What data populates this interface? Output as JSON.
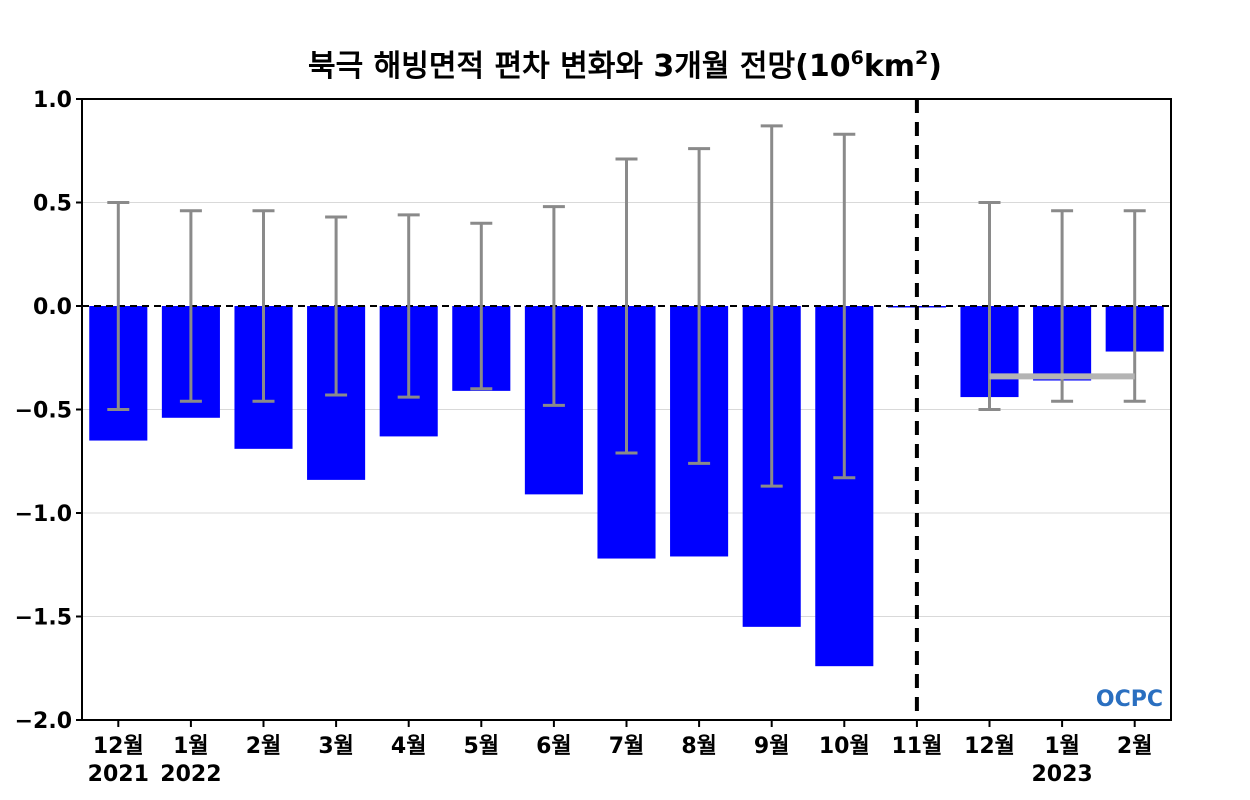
{
  "chart_data": {
    "type": "bar",
    "title": "북극 해빙면적 편차 변화와 3개월 전망(10",
    "title_exp1": "6",
    "title_mid": "km",
    "title_exp2": "2",
    "title_end": ")",
    "categories": [
      "12월",
      "1월",
      "2월",
      "3월",
      "4월",
      "5월",
      "6월",
      "7월",
      "8월",
      "9월",
      "10월",
      "11월",
      "12월",
      "1월",
      "2월"
    ],
    "year_labels": [
      {
        "index": 0,
        "text": "2021"
      },
      {
        "index": 1,
        "text": "2022"
      },
      {
        "index": 13,
        "text": "2023"
      }
    ],
    "series": [
      {
        "values": [
          -0.65,
          -0.54,
          -0.69,
          -0.84,
          -0.63,
          -0.41,
          -0.91,
          -1.22,
          -1.21,
          -1.55,
          -1.74,
          0.0,
          -0.44,
          -0.36,
          -0.22
        ]
      }
    ],
    "error_bars": [
      [
        -0.5,
        0.5
      ],
      [
        -0.46,
        0.46
      ],
      [
        -0.46,
        0.46
      ],
      [
        -0.43,
        0.43
      ],
      [
        -0.44,
        0.44
      ],
      [
        -0.4,
        0.4
      ],
      [
        -0.48,
        0.48
      ],
      [
        -0.71,
        0.71
      ],
      [
        -0.76,
        0.76
      ],
      [
        -0.87,
        0.87
      ],
      [
        -0.83,
        0.83
      ],
      null,
      [
        -0.5,
        0.5
      ],
      [
        -0.46,
        0.46
      ],
      [
        -0.46,
        0.46
      ]
    ],
    "forecast_mean": {
      "from_index": 12,
      "to_index": 14,
      "value": -0.34
    },
    "divider_index": 11,
    "ylim": [
      -2.0,
      1.0
    ],
    "yticks": [
      1.0,
      0.5,
      0.0,
      -0.5,
      -1.0,
      -1.5,
      -2.0
    ],
    "ytick_labels": [
      "1.0",
      "0.5",
      "0.0",
      "−0.5",
      "−1.0",
      "−1.5",
      "−2.0"
    ],
    "xlabel": "",
    "ylabel": "",
    "grid": true,
    "colors": {
      "bar": "#0000ff",
      "error_bar": "#8a8a8a",
      "forecast_mean": "#b4b4b4",
      "grid": "#d9d9d9",
      "divider": "#000000",
      "logo": "#2a6fc0"
    }
  },
  "logo_text": "OCPC"
}
